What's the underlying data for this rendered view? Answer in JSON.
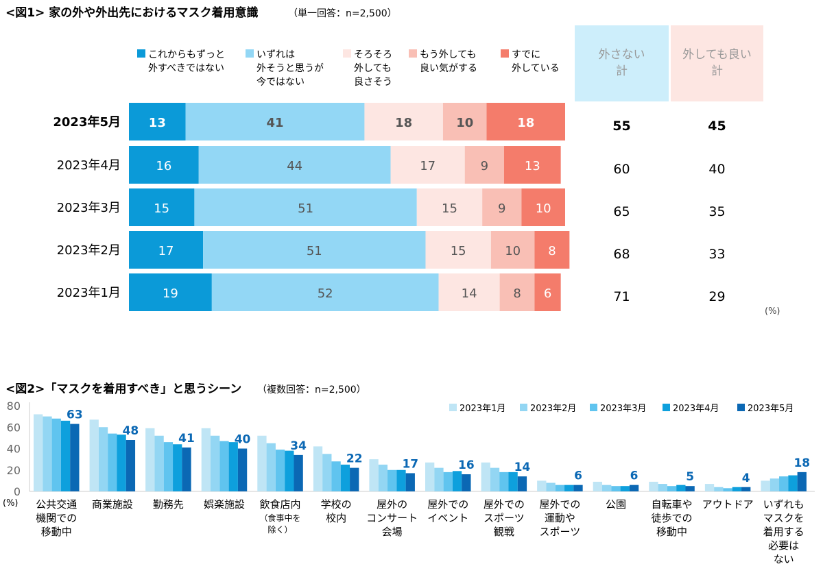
{
  "chart_data": [
    {
      "type": "bar",
      "stacked": true,
      "orientation": "horizontal",
      "title": "<図1> 家の外や外出先におけるマスク着用意識",
      "subtitle": "（単一回答：n=2,500）",
      "unit": "(%)",
      "categories": [
        "2023年5月",
        "2023年4月",
        "2023年3月",
        "2023年2月",
        "2023年1月"
      ],
      "series": [
        {
          "name": "これからもずっと\n外すべきではない",
          "color": "#0b9ad8",
          "values": [
            13,
            16,
            15,
            17,
            19
          ]
        },
        {
          "name": "いずれは\n外そうと思うが\n今ではない",
          "color": "#93d7f5",
          "values": [
            41,
            44,
            51,
            51,
            52
          ]
        },
        {
          "name": "そろそろ\n外しても\n良さそう",
          "color": "#fde6e2",
          "values": [
            18,
            17,
            15,
            15,
            14
          ]
        },
        {
          "name": "もう外しても\n良い気がする",
          "color": "#f9bfb5",
          "values": [
            10,
            9,
            9,
            10,
            8
          ]
        },
        {
          "name": "すでに\n外している",
          "color": "#f47c6b",
          "values": [
            18,
            13,
            10,
            8,
            6
          ]
        }
      ],
      "totals": [
        {
          "name": "外さない\n計",
          "color": "#cdeefb",
          "values": [
            55,
            60,
            65,
            68,
            71
          ]
        },
        {
          "name": "外しても良い\n計",
          "color": "#fde6e2",
          "values": [
            45,
            40,
            35,
            33,
            29
          ]
        }
      ],
      "xlim": [
        0,
        100
      ]
    },
    {
      "type": "bar",
      "title": "<図2>「マスクを着用すべき」と思うシーン",
      "subtitle": "（複数回答：n=2,500）",
      "ylabel": "(%)",
      "ylim": [
        0,
        80
      ],
      "yticks": [
        0,
        20,
        40,
        60,
        80
      ],
      "legend": "top-right",
      "categories": [
        "公共交通\n機関での\n移動中",
        "商業施設",
        "勤務先",
        "娯楽施設",
        "飲食店内",
        "学校の\n校内",
        "屋外の\nコンサート\n会場",
        "屋外での\nイベント",
        "屋外での\nスポーツ\n観戦",
        "屋外での\n運動や\nスポーツ",
        "公園",
        "自転車や\n徒歩での\n移動中",
        "アウトドア",
        "いずれも\nマスクを\n着用する\n必要は\nない"
      ],
      "category_notes": {
        "4": "（食事中を\n除く）"
      },
      "series": [
        {
          "name": "2023年1月",
          "color": "#bfe5f5",
          "values": [
            72,
            67,
            59,
            59,
            52,
            42,
            30,
            27,
            27,
            10,
            9,
            9,
            7,
            10
          ]
        },
        {
          "name": "2023年2月",
          "color": "#93d6f3",
          "values": [
            70,
            60,
            52,
            52,
            45,
            35,
            25,
            22,
            22,
            8,
            6,
            7,
            4,
            12
          ]
        },
        {
          "name": "2023年3月",
          "color": "#60c4ef",
          "values": [
            68,
            54,
            46,
            47,
            39,
            28,
            20,
            18,
            18,
            6,
            5,
            5,
            3,
            14
          ]
        },
        {
          "name": "2023年4月",
          "color": "#0ea0dd",
          "values": [
            66,
            53,
            44,
            46,
            38,
            25,
            20,
            19,
            18,
            6,
            5,
            6,
            4,
            15
          ]
        },
        {
          "name": "2023年5月",
          "color": "#0b68b4",
          "values": [
            63,
            48,
            41,
            40,
            34,
            22,
            17,
            16,
            14,
            6,
            6,
            5,
            4,
            18
          ]
        }
      ],
      "data_labels": [
        "63",
        "48",
        "41",
        "40",
        "34",
        "22",
        "17",
        "16",
        "14",
        "6",
        "6",
        "5",
        "4",
        "18"
      ]
    }
  ]
}
